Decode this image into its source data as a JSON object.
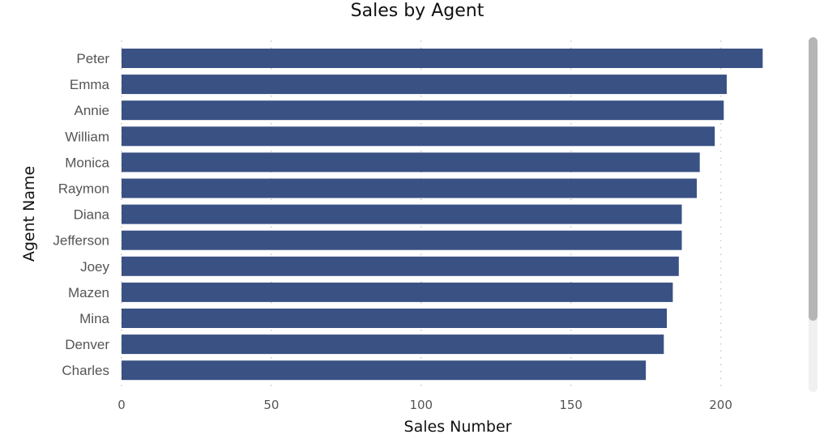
{
  "chart_data": {
    "type": "bar",
    "orientation": "horizontal",
    "title": "Sales by Agent",
    "xlabel": "Sales Number",
    "ylabel": "Agent Name",
    "categories": [
      "Peter",
      "Emma",
      "Annie",
      "William",
      "Monica",
      "Raymon",
      "Diana",
      "Jefferson",
      "Joey",
      "Mazen",
      "Mina",
      "Denver",
      "Charles"
    ],
    "values": [
      214,
      202,
      201,
      198,
      193,
      192,
      187,
      187,
      186,
      184,
      182,
      181,
      175
    ],
    "xlim": [
      0,
      225
    ],
    "xticks": [
      0,
      50,
      100,
      150,
      200
    ],
    "grid": "vertical dotted",
    "colors": {
      "bar": "#3a5184",
      "grid": "#c8c8c8"
    }
  },
  "scrollbar": {
    "position_fraction": 0,
    "visible_fraction": 0.8
  }
}
